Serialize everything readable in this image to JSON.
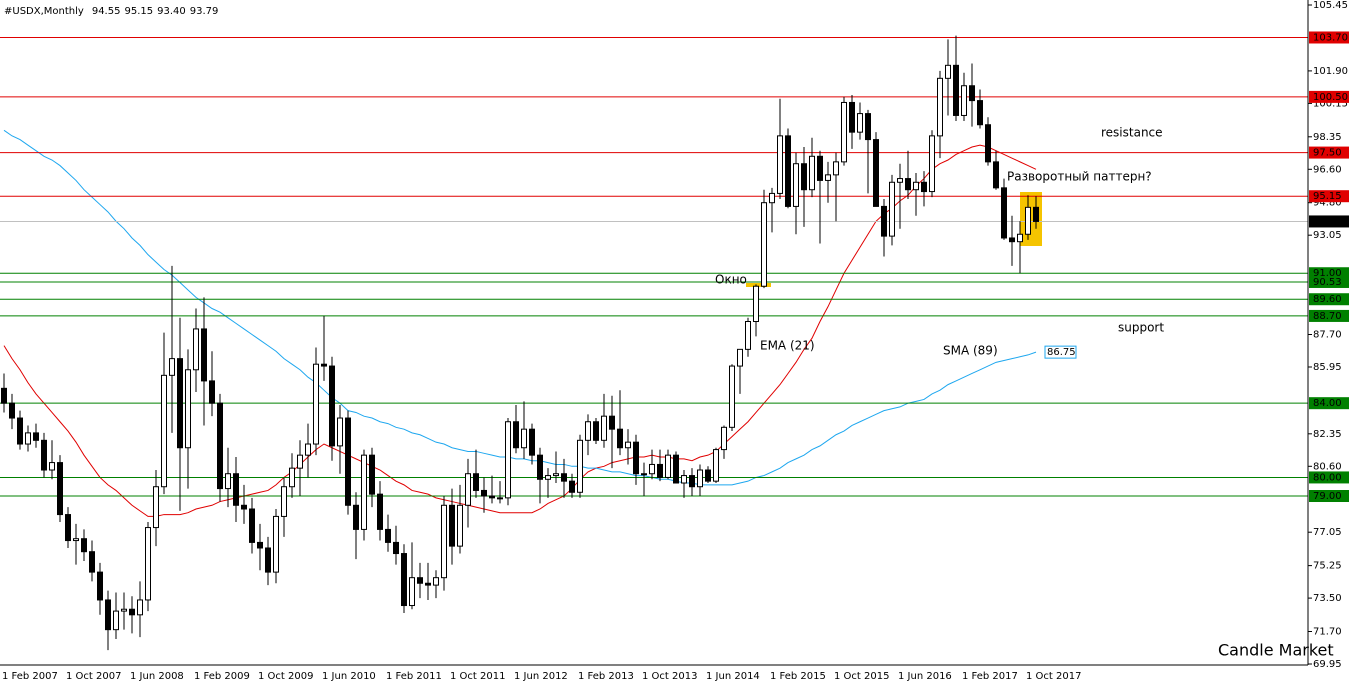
{
  "chart_data": {
    "type": "candlestick",
    "title": "#USDX,Monthly",
    "last_bar_labels": [
      "94.55",
      "95.15",
      "93.40",
      "93.79"
    ],
    "categories": [
      "1 Feb 2007",
      null,
      null,
      null,
      null,
      null,
      null,
      null,
      "1 Oct 2007",
      null,
      null,
      null,
      null,
      null,
      null,
      null,
      "1 Jun 2008",
      null,
      null,
      null,
      null,
      null,
      null,
      null,
      "1 Feb 2009",
      null,
      null,
      null,
      null,
      null,
      null,
      null,
      "1 Oct 2009",
      null,
      null,
      null,
      null,
      null,
      null,
      null,
      "1 Jun 2010",
      null,
      null,
      null,
      null,
      null,
      null,
      null,
      "1 Feb 2011",
      null,
      null,
      null,
      null,
      null,
      null,
      null,
      "1 Oct 2011",
      null,
      null,
      null,
      null,
      null,
      null,
      null,
      "1 Jun 2012",
      null,
      null,
      null,
      null,
      null,
      null,
      null,
      "1 Feb 2013",
      null,
      null,
      null,
      null,
      null,
      null,
      null,
      "1 Oct 2013",
      null,
      null,
      null,
      null,
      null,
      null,
      null,
      "1 Jun 2014",
      null,
      null,
      null,
      null,
      null,
      null,
      null,
      "1 Feb 2015",
      null,
      null,
      null,
      null,
      null,
      null,
      null,
      "1 Oct 2015",
      null,
      null,
      null,
      null,
      null,
      null,
      null,
      "1 Jun 2016",
      null,
      null,
      null,
      null,
      null,
      null,
      null,
      "1 Feb 2017",
      null,
      null,
      null,
      null,
      null,
      null,
      null,
      "1 Oct 2017",
      null
    ],
    "ohlc": [
      [
        84.8,
        85.6,
        83.5,
        84.0
      ],
      [
        84.0,
        84.5,
        82.6,
        83.2
      ],
      [
        83.2,
        83.6,
        81.5,
        81.8
      ],
      [
        81.8,
        82.8,
        81.4,
        82.4
      ],
      [
        82.4,
        82.9,
        81.6,
        82.0
      ],
      [
        82.0,
        82.4,
        80.0,
        80.4
      ],
      [
        80.4,
        82.0,
        79.9,
        80.8
      ],
      [
        80.8,
        81.2,
        77.6,
        78.0
      ],
      [
        78.0,
        78.4,
        76.2,
        76.6
      ],
      [
        76.6,
        77.5,
        75.3,
        76.7
      ],
      [
        76.7,
        77.2,
        75.5,
        76.0
      ],
      [
        76.0,
        76.6,
        74.4,
        74.9
      ],
      [
        74.9,
        75.4,
        72.6,
        73.4
      ],
      [
        73.4,
        73.9,
        70.7,
        71.8
      ],
      [
        71.8,
        73.8,
        71.3,
        72.8
      ],
      [
        72.8,
        73.8,
        71.8,
        72.9
      ],
      [
        72.9,
        73.6,
        71.6,
        72.6
      ],
      [
        72.6,
        74.4,
        71.4,
        73.4
      ],
      [
        73.4,
        77.6,
        72.8,
        77.3
      ],
      [
        77.3,
        80.4,
        76.3,
        79.5
      ],
      [
        79.5,
        87.8,
        79.1,
        85.5
      ],
      [
        85.5,
        91.4,
        82.4,
        86.4
      ],
      [
        86.4,
        88.6,
        78.2,
        81.6
      ],
      [
        81.6,
        86.9,
        79.4,
        85.8
      ],
      [
        85.8,
        89.1,
        84.6,
        88.0
      ],
      [
        88.0,
        89.7,
        82.8,
        85.2
      ],
      [
        85.2,
        86.8,
        83.3,
        84.0
      ],
      [
        84.0,
        84.5,
        78.7,
        79.4
      ],
      [
        79.4,
        81.6,
        78.4,
        80.2
      ],
      [
        80.2,
        81.1,
        77.6,
        78.5
      ],
      [
        78.5,
        79.6,
        77.5,
        78.3
      ],
      [
        78.3,
        78.9,
        75.9,
        76.5
      ],
      [
        76.5,
        77.5,
        75.0,
        76.2
      ],
      [
        76.2,
        76.8,
        74.2,
        74.9
      ],
      [
        74.9,
        78.3,
        74.3,
        77.9
      ],
      [
        77.9,
        80.0,
        76.8,
        79.5
      ],
      [
        79.5,
        81.3,
        78.9,
        80.5
      ],
      [
        80.5,
        82.0,
        79.0,
        81.2
      ],
      [
        81.2,
        82.9,
        80.0,
        81.8
      ],
      [
        81.8,
        87.0,
        81.2,
        86.1
      ],
      [
        86.1,
        88.7,
        85.2,
        86.0
      ],
      [
        86.0,
        86.5,
        80.9,
        81.7
      ],
      [
        81.7,
        83.9,
        80.2,
        83.2
      ],
      [
        83.2,
        83.6,
        78.0,
        78.5
      ],
      [
        78.5,
        79.2,
        75.6,
        77.2
      ],
      [
        77.2,
        81.5,
        76.6,
        81.2
      ],
      [
        81.2,
        81.6,
        78.4,
        79.1
      ],
      [
        79.1,
        79.8,
        76.6,
        77.2
      ],
      [
        77.2,
        78.0,
        76.0,
        76.5
      ],
      [
        76.5,
        77.4,
        75.3,
        75.9
      ],
      [
        75.9,
        76.4,
        72.7,
        73.1
      ],
      [
        73.1,
        76.5,
        72.9,
        74.6
      ],
      [
        74.6,
        75.4,
        73.5,
        74.3
      ],
      [
        74.3,
        75.4,
        73.4,
        74.2
      ],
      [
        74.2,
        75.0,
        73.5,
        74.6
      ],
      [
        74.6,
        79.0,
        73.9,
        78.5
      ],
      [
        78.5,
        79.4,
        75.3,
        76.3
      ],
      [
        76.3,
        79.6,
        75.9,
        78.5
      ],
      [
        78.5,
        81.0,
        77.3,
        80.2
      ],
      [
        80.2,
        81.5,
        78.9,
        79.3
      ],
      [
        79.3,
        80.0,
        78.1,
        79.0
      ],
      [
        79.0,
        80.1,
        78.6,
        78.9
      ],
      [
        78.9,
        79.8,
        78.6,
        78.9
      ],
      [
        78.9,
        83.2,
        78.5,
        83.0
      ],
      [
        83.0,
        83.9,
        81.3,
        81.6
      ],
      [
        81.6,
        84.1,
        81.0,
        82.6
      ],
      [
        82.6,
        82.9,
        80.7,
        81.2
      ],
      [
        81.2,
        81.6,
        78.6,
        79.9
      ],
      [
        79.9,
        80.5,
        78.9,
        80.1
      ],
      [
        80.1,
        81.4,
        79.7,
        80.2
      ],
      [
        80.2,
        81.0,
        78.9,
        79.8
      ],
      [
        79.8,
        80.2,
        78.9,
        79.2
      ],
      [
        79.2,
        82.3,
        78.9,
        82.0
      ],
      [
        82.0,
        83.4,
        81.2,
        83.0
      ],
      [
        83.0,
        83.2,
        81.8,
        82.0
      ],
      [
        82.0,
        84.5,
        81.6,
        83.3
      ],
      [
        83.3,
        84.4,
        80.5,
        82.6
      ],
      [
        82.6,
        84.7,
        81.2,
        81.6
      ],
      [
        81.6,
        82.6,
        80.7,
        81.9
      ],
      [
        81.9,
        82.3,
        79.6,
        80.2
      ],
      [
        80.2,
        80.8,
        79.0,
        80.2
      ],
      [
        80.2,
        81.5,
        79.9,
        80.7
      ],
      [
        80.7,
        81.5,
        79.8,
        80.0
      ],
      [
        80.0,
        81.5,
        79.9,
        81.2
      ],
      [
        81.2,
        81.4,
        79.7,
        79.7
      ],
      [
        79.7,
        80.4,
        78.9,
        80.1
      ],
      [
        80.1,
        80.5,
        79.0,
        79.5
      ],
      [
        79.5,
        80.7,
        79.0,
        80.4
      ],
      [
        80.4,
        80.6,
        79.7,
        79.8
      ],
      [
        79.8,
        81.6,
        79.7,
        81.5
      ],
      [
        81.5,
        82.8,
        81.0,
        82.7
      ],
      [
        82.7,
        86.1,
        82.5,
        86.0
      ],
      [
        86.0,
        86.9,
        84.5,
        86.9
      ],
      [
        86.9,
        88.6,
        86.5,
        88.4
      ],
      [
        88.4,
        90.4,
        87.6,
        90.3
      ],
      [
        90.3,
        95.5,
        90.2,
        94.8
      ],
      [
        94.8,
        95.6,
        93.2,
        95.3
      ],
      [
        95.3,
        100.4,
        95.0,
        98.4
      ],
      [
        98.4,
        98.8,
        94.5,
        94.6
      ],
      [
        94.6,
        97.5,
        93.1,
        96.9
      ],
      [
        96.9,
        97.8,
        93.5,
        95.5
      ],
      [
        95.5,
        98.3,
        95.1,
        97.3
      ],
      [
        97.3,
        97.6,
        92.6,
        96.0
      ],
      [
        96.0,
        97.0,
        94.8,
        96.3
      ],
      [
        96.3,
        97.5,
        93.8,
        97.0
      ],
      [
        97.0,
        100.5,
        96.8,
        100.2
      ],
      [
        100.2,
        100.6,
        97.7,
        98.6
      ],
      [
        98.6,
        100.2,
        98.2,
        99.6
      ],
      [
        99.6,
        99.8,
        95.3,
        98.2
      ],
      [
        98.2,
        98.6,
        94.6,
        94.6
      ],
      [
        94.6,
        95.0,
        91.9,
        93.0
      ],
      [
        93.0,
        96.3,
        92.5,
        95.9
      ],
      [
        95.9,
        96.9,
        93.4,
        96.1
      ],
      [
        96.1,
        97.6,
        95.0,
        95.5
      ],
      [
        95.5,
        96.4,
        94.1,
        95.9
      ],
      [
        95.9,
        96.5,
        94.6,
        95.4
      ],
      [
        95.4,
        98.7,
        95.1,
        98.4
      ],
      [
        98.4,
        101.9,
        97.2,
        101.5
      ],
      [
        101.5,
        103.6,
        99.5,
        102.2
      ],
      [
        102.2,
        103.8,
        99.2,
        99.5
      ],
      [
        99.5,
        101.8,
        99.2,
        101.1
      ],
      [
        101.1,
        102.3,
        98.9,
        100.3
      ],
      [
        100.3,
        100.9,
        98.8,
        99.0
      ],
      [
        99.0,
        99.4,
        96.8,
        97.0
      ],
      [
        97.0,
        97.6,
        95.5,
        95.6
      ],
      [
        95.6,
        96.1,
        92.8,
        92.9
      ],
      [
        92.9,
        94.1,
        91.4,
        92.7
      ],
      [
        92.7,
        93.8,
        91.0,
        93.1
      ],
      [
        93.1,
        95.2,
        92.8,
        94.55
      ],
      [
        94.55,
        95.15,
        93.4,
        93.79
      ]
    ],
    "series": [
      {
        "name": "EMA (21)",
        "color": "#e00000",
        "values": [
          87.1,
          86.4,
          85.8,
          85.1,
          84.5,
          84.0,
          83.5,
          83.0,
          82.5,
          81.9,
          81.2,
          80.6,
          80.0,
          79.6,
          79.3,
          78.9,
          78.5,
          78.2,
          77.9,
          77.9,
          78.0,
          78.0,
          78.0,
          78.1,
          78.3,
          78.4,
          78.5,
          78.7,
          78.8,
          78.9,
          79.0,
          79.1,
          79.2,
          79.3,
          79.6,
          80.0,
          80.3,
          80.7,
          81.1,
          81.5,
          81.8,
          81.6,
          81.4,
          81.2,
          81.0,
          80.8,
          80.6,
          80.4,
          80.1,
          79.8,
          79.6,
          79.3,
          79.2,
          79.1,
          78.9,
          78.8,
          78.7,
          78.6,
          78.5,
          78.4,
          78.3,
          78.2,
          78.1,
          78.1,
          78.1,
          78.1,
          78.1,
          78.3,
          78.6,
          78.8,
          79.0,
          79.4,
          79.9,
          80.3,
          80.5,
          80.6,
          80.8,
          80.9,
          81.0,
          81.1,
          81.1,
          81.2,
          81.1,
          81.1,
          81.0,
          81.0,
          80.9,
          81.1,
          81.2,
          81.4,
          81.8,
          82.2,
          82.6,
          83.0,
          83.5,
          84.0,
          84.5,
          85.0,
          85.6,
          86.2,
          86.9,
          87.5,
          88.4,
          89.2,
          90.1,
          91.0,
          91.7,
          92.4,
          93.1,
          93.8,
          94.2,
          94.5,
          94.9,
          95.2,
          95.7,
          96.1,
          96.6,
          96.9,
          97.1,
          97.4,
          97.6,
          97.8,
          97.9,
          97.8,
          97.6,
          97.4,
          97.2,
          97.0,
          96.8,
          96.6
        ]
      },
      {
        "name": "SMA (89)",
        "color": "#1ea7ef",
        "values": [
          98.7,
          98.4,
          98.2,
          97.9,
          97.6,
          97.3,
          97.1,
          96.8,
          96.4,
          96.0,
          95.5,
          95.1,
          94.7,
          94.3,
          93.8,
          93.4,
          92.9,
          92.5,
          92.0,
          91.6,
          91.2,
          90.9,
          90.5,
          90.1,
          89.7,
          89.4,
          89.1,
          88.9,
          88.6,
          88.3,
          88.0,
          87.7,
          87.4,
          87.1,
          86.8,
          86.4,
          86.1,
          85.8,
          85.4,
          85.1,
          84.7,
          84.3,
          84.0,
          83.6,
          83.5,
          83.3,
          83.2,
          83.0,
          82.9,
          82.7,
          82.6,
          82.4,
          82.3,
          82.1,
          81.9,
          81.8,
          81.6,
          81.5,
          81.4,
          81.4,
          81.3,
          81.2,
          81.1,
          81.1,
          81.0,
          81.0,
          80.9,
          80.9,
          80.8,
          80.7,
          80.7,
          80.6,
          80.6,
          80.5,
          80.5,
          80.4,
          80.3,
          80.3,
          80.2,
          80.1,
          80.1,
          80.0,
          79.9,
          79.9,
          79.8,
          79.7,
          79.7,
          79.6,
          79.6,
          79.6,
          79.6,
          79.6,
          79.7,
          79.8,
          80.0,
          80.1,
          80.3,
          80.5,
          80.8,
          81.0,
          81.2,
          81.5,
          81.7,
          82.0,
          82.3,
          82.5,
          82.8,
          83.0,
          83.2,
          83.4,
          83.6,
          83.7,
          83.8,
          84.0,
          84.1,
          84.2,
          84.5,
          84.7,
          85.0,
          85.2,
          85.4,
          85.6,
          85.8,
          86.0,
          86.2,
          86.3,
          86.4,
          86.5,
          86.6,
          86.75
        ]
      }
    ],
    "ylim": [
      69.95,
      105.45
    ],
    "yticks": [
      105.45,
      {
        "value": 101.9,
        "label": "101.90"
      },
      100.15,
      98.35,
      {
        "value": 96.6,
        "label": "96.60"
      },
      {
        "value": 94.8,
        "label": "94.80"
      },
      93.05,
      {
        "value": 87.7,
        "label": "87.70"
      },
      85.95,
      82.35,
      {
        "value": 80.6,
        "label": "80.60"
      },
      77.05,
      75.25,
      {
        "value": 73.5,
        "label": "73.50"
      },
      {
        "value": 71.7,
        "label": "71.70"
      },
      69.95
    ],
    "levels": [
      {
        "value": 103.7,
        "label": "103.70",
        "color": "#e00000"
      },
      {
        "value": 100.5,
        "label": "100.50",
        "color": "#e00000"
      },
      {
        "value": 97.5,
        "label": "97.50",
        "color": "#e00000"
      },
      {
        "value": 95.15,
        "label": "95.15",
        "color": "#e00000"
      },
      {
        "value": 91,
        "label": "91.00",
        "color": "#008000"
      },
      {
        "value": 90.53,
        "label": "90.53",
        "color": "#008000"
      },
      {
        "value": 89.6,
        "label": "89.60",
        "color": "#008000"
      },
      {
        "value": 88.7,
        "label": "88.70",
        "color": "#008000"
      },
      {
        "value": 84,
        "label": "84.00",
        "color": "#008000"
      },
      {
        "value": 80,
        "label": "80.00",
        "color": "#008000"
      },
      {
        "value": 79,
        "label": "79.00",
        "color": "#008000"
      }
    ],
    "annotations": [
      {
        "text": "resistance",
        "color": "#e00000"
      },
      {
        "text": "support",
        "color": "#008000"
      },
      {
        "text": "Окно",
        "color": "#e00000"
      },
      {
        "text": "Разворотный паттерн?",
        "color": "#e00000"
      },
      {
        "text": "Candle Market",
        "color": "#000000"
      }
    ],
    "bull_color": "#ffffff",
    "bear_color": "#000000",
    "grid": false
  }
}
